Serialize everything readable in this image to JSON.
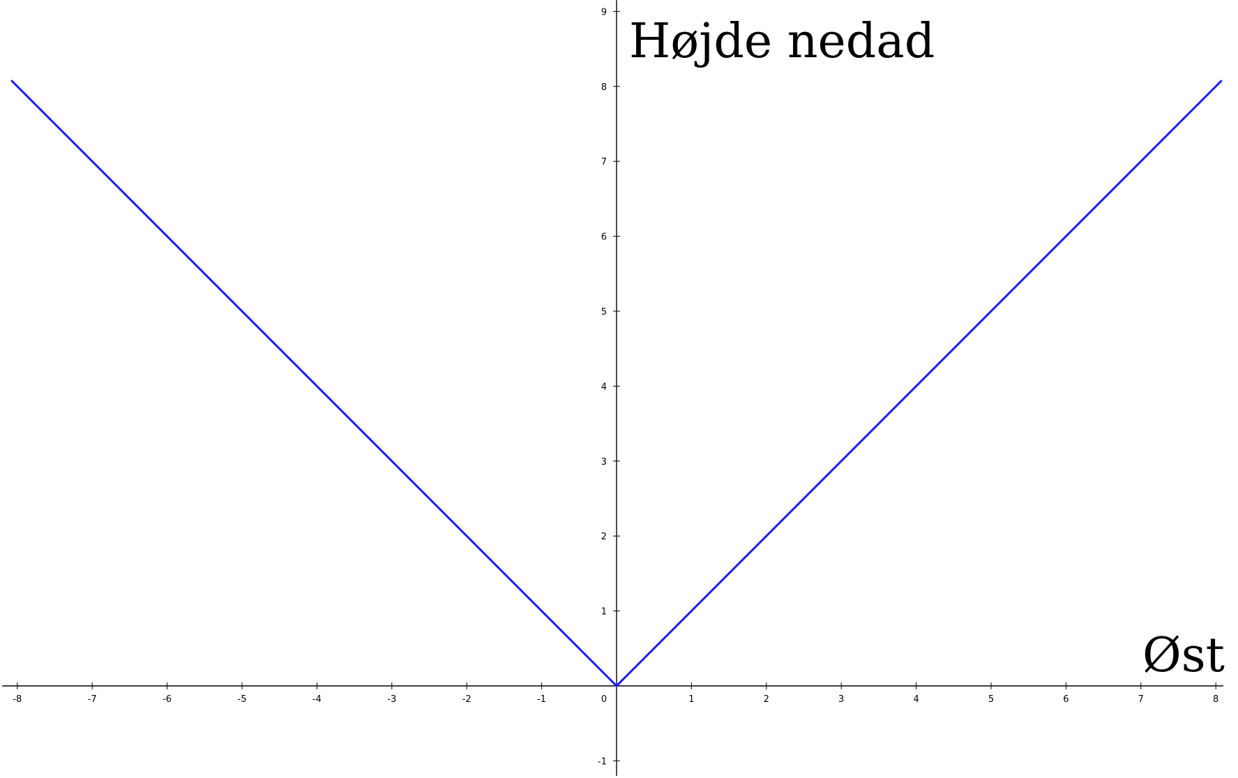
{
  "chart_data": {
    "type": "line",
    "title": "",
    "xlabel": "Øst",
    "ylabel": "Højde nedad",
    "xlim": [
      -8.2,
      8.1
    ],
    "ylim": [
      -1.2,
      9.15
    ],
    "x_ticks": [
      -8,
      -7,
      -6,
      -5,
      -4,
      -3,
      -2,
      -1,
      0,
      1,
      2,
      3,
      4,
      5,
      6,
      7,
      8
    ],
    "y_ticks": [
      -1,
      1,
      2,
      3,
      4,
      5,
      6,
      7,
      8,
      9
    ],
    "x_tick_labels": [
      "-8",
      "-7",
      "-6",
      "-5",
      "-4",
      "-3",
      "-2",
      "-1",
      "0",
      "1",
      "2",
      "3",
      "4",
      "5",
      "6",
      "7",
      "8"
    ],
    "y_tick_labels": [
      "-1",
      "1",
      "2",
      "3",
      "4",
      "5",
      "6",
      "7",
      "8",
      "9"
    ],
    "grid": false,
    "series": [
      {
        "x": [
          -8.08,
          0,
          8.08
        ],
        "y": [
          8.08,
          0,
          8.08
        ],
        "color": "#1a1aff"
      }
    ]
  }
}
